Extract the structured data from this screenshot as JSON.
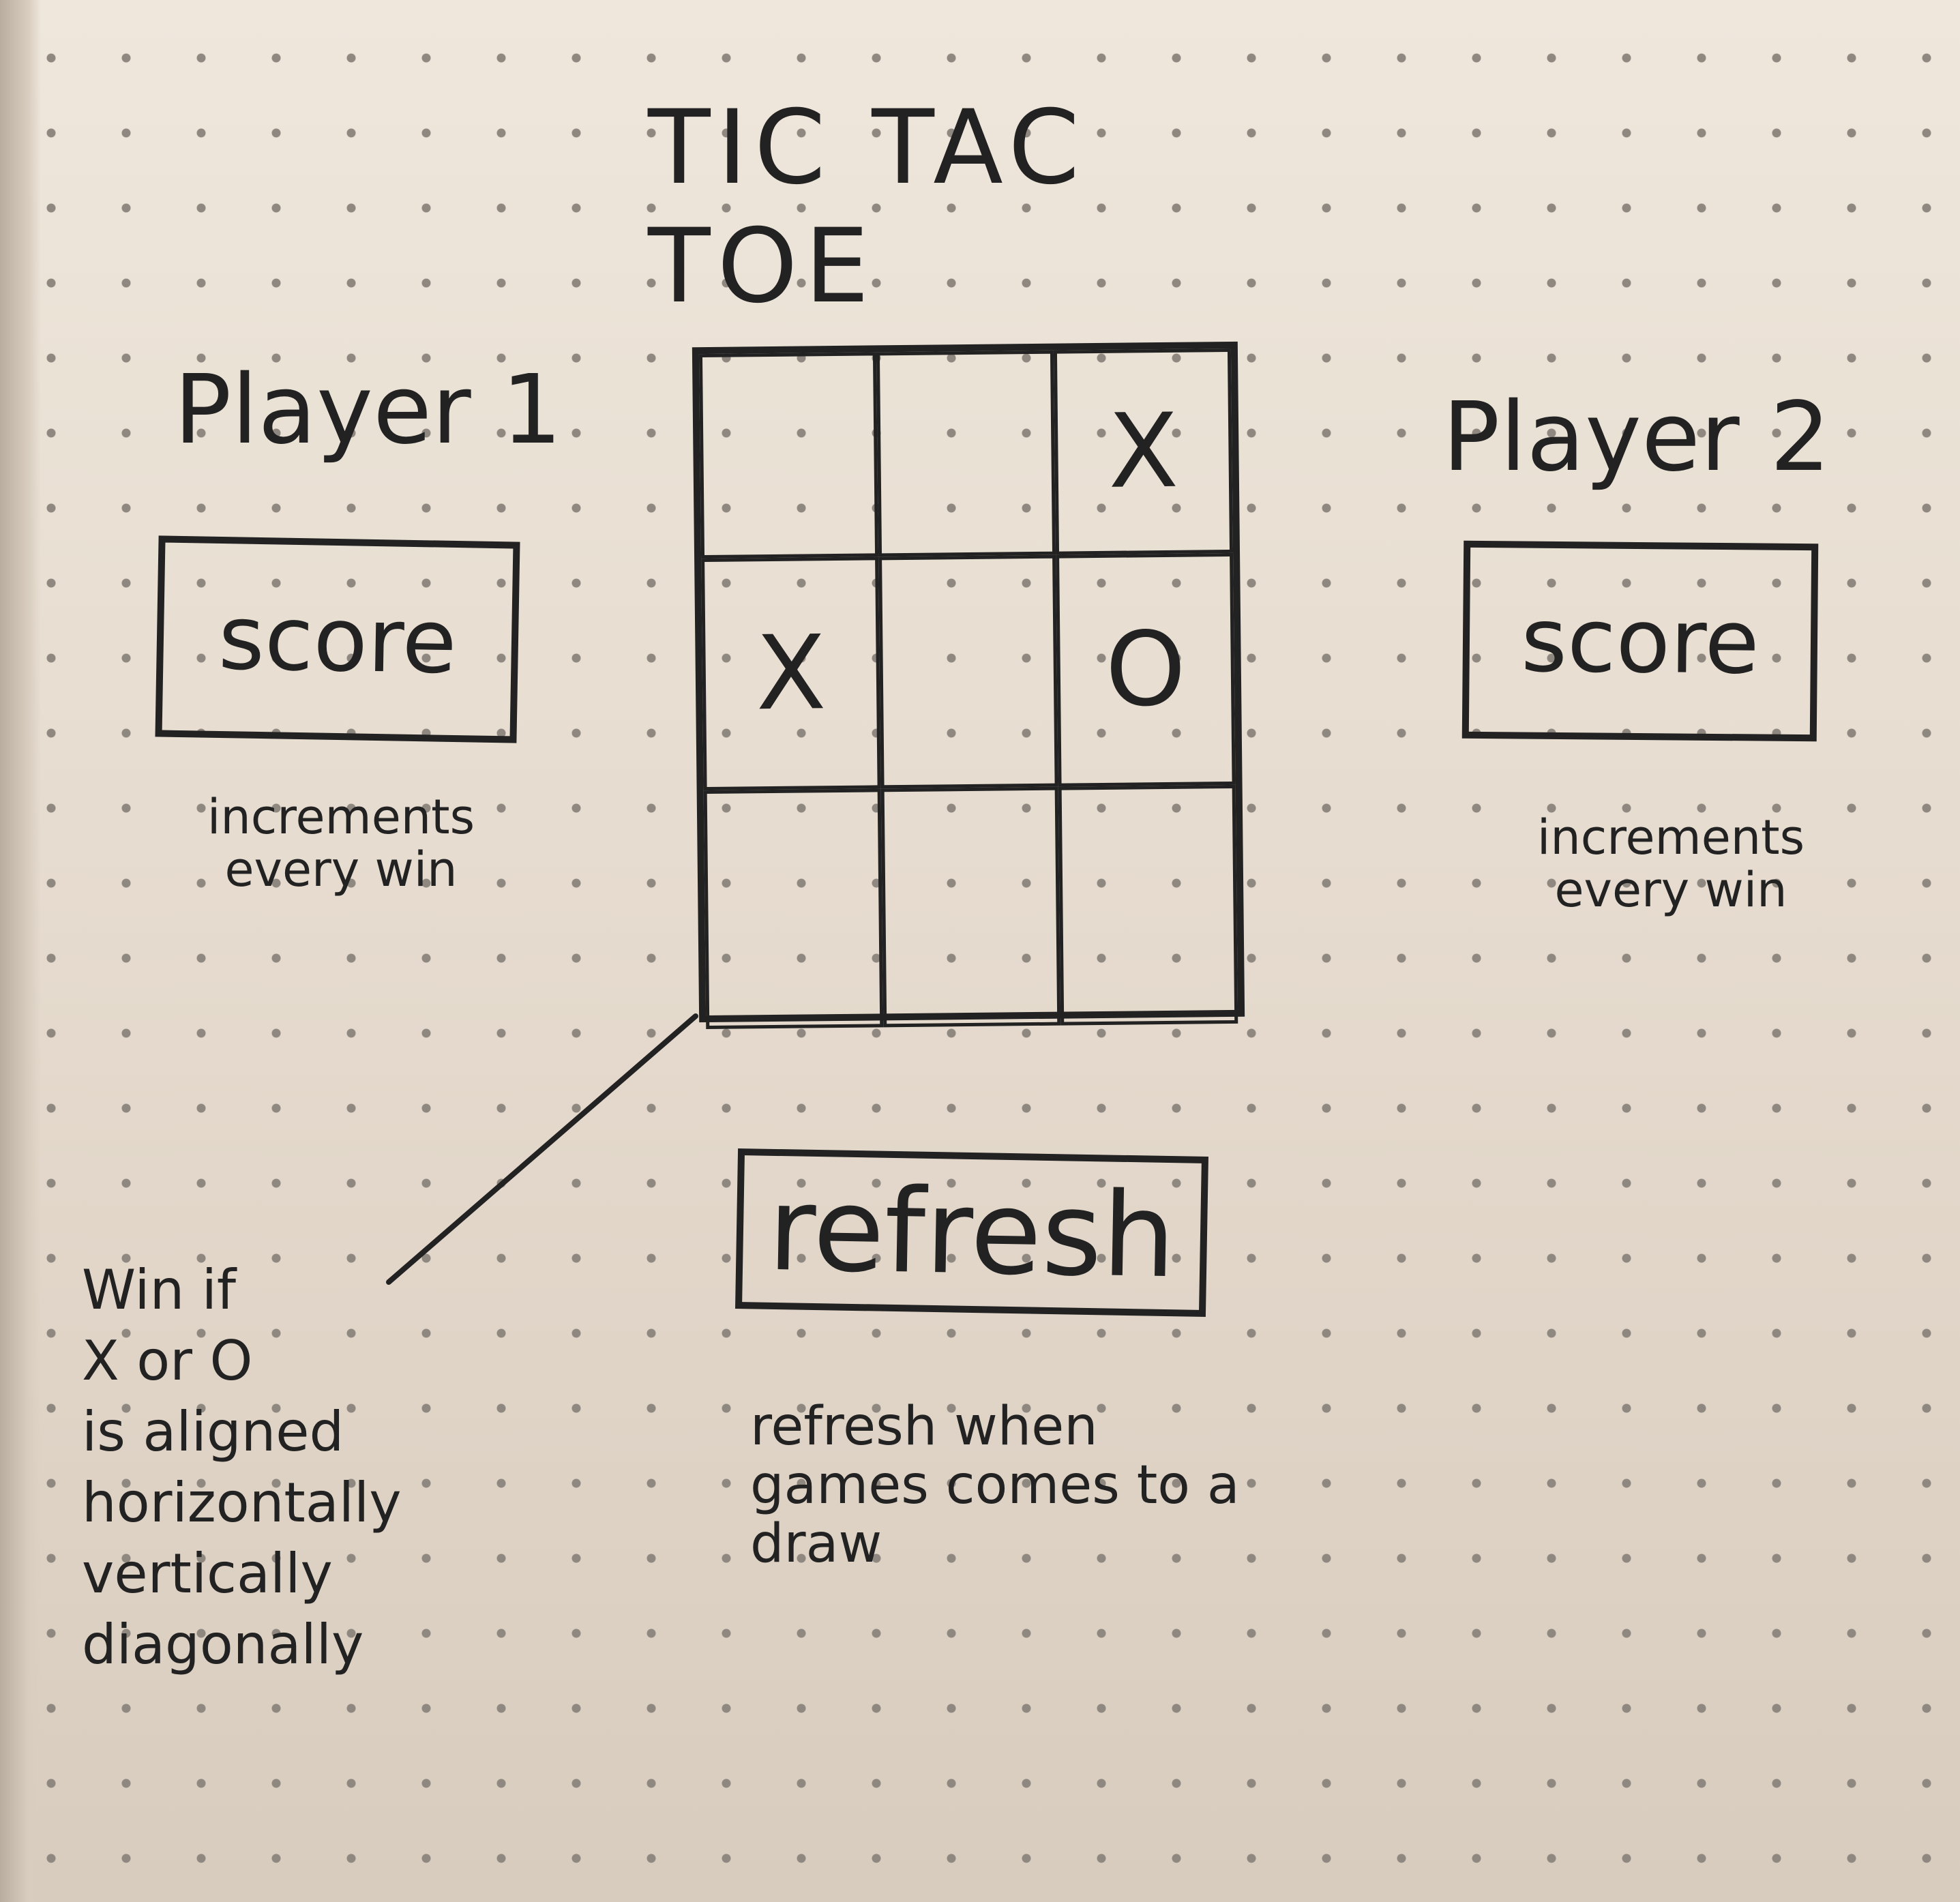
{
  "title": "TIC TAC TOE",
  "player1": {
    "label": "Player 1",
    "score_label": "score",
    "note": "increments every win"
  },
  "player2": {
    "label": "Player 2",
    "score_label": "score",
    "note": "increments every win"
  },
  "board": {
    "cells": [
      "",
      "",
      "X",
      "X",
      "",
      "O",
      "",
      "",
      ""
    ]
  },
  "refresh": {
    "label": "refresh",
    "note": "refresh when games comes to a draw"
  },
  "win_rule": {
    "lines": [
      "Win if",
      "X or O",
      "is aligned",
      "horizontally",
      "vertically",
      "diagonally"
    ]
  }
}
